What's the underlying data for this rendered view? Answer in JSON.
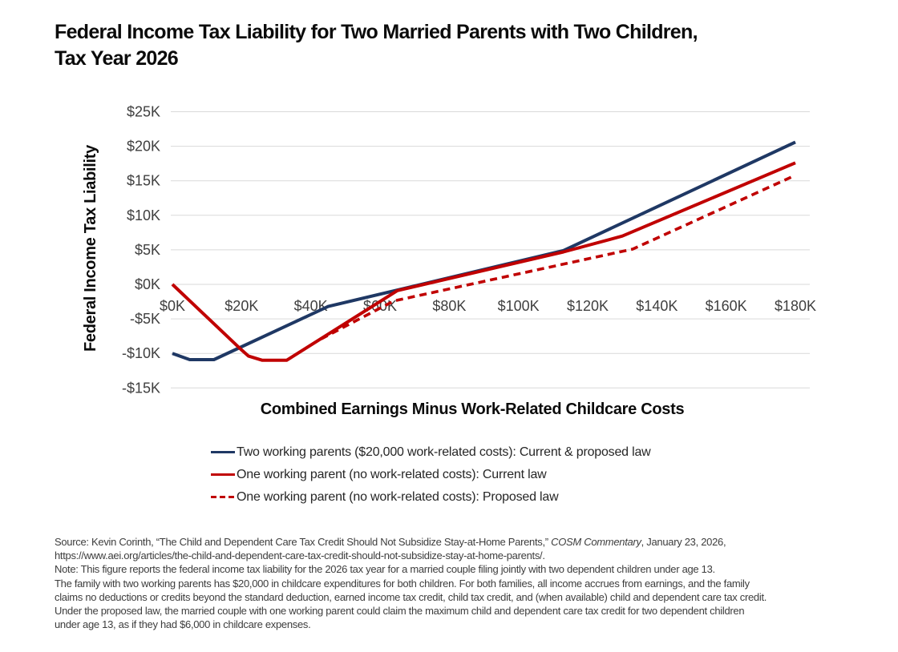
{
  "page": {
    "title_line1": "Federal Income Tax Liability for Two Married Parents with Two Children,",
    "title_line2": "Tax Year 2026"
  },
  "chart_data": {
    "type": "line",
    "title": "Federal Income Tax Liability for Two Married Parents with Two Children, Tax Year 2026",
    "xlabel": "Combined Earnings Minus Work-Related Childcare Costs",
    "ylabel": "Federal Income Tax Liability",
    "x_units": "thousands of dollars",
    "y_units": "thousands of dollars",
    "xlim": [
      0,
      180
    ],
    "ylim": [
      -15,
      25
    ],
    "grid": "horizontal",
    "gridline_color": "#d9d9d9",
    "tick_label_color": "#3f3f3f",
    "x_ticks": [
      0,
      20,
      40,
      60,
      80,
      100,
      120,
      140,
      160,
      180
    ],
    "x_tick_labels": [
      "$0K",
      "$20K",
      "$40K",
      "$60K",
      "$80K",
      "$100K",
      "$120K",
      "$140K",
      "$160K",
      "$180K"
    ],
    "y_ticks": [
      25,
      20,
      15,
      10,
      5,
      0,
      -5,
      -10,
      -15
    ],
    "y_tick_labels": [
      "$25K",
      "$20K",
      "$15K",
      "$10K",
      "$5K",
      "$0K",
      "-$5K",
      "-$10K",
      "-$15K"
    ],
    "legend_position": "below",
    "series": [
      {
        "name": "Two working parents ($20,000 work-related costs): Current & proposed law",
        "color": "#1f3864",
        "style": "solid",
        "points": [
          [
            0,
            -10.0
          ],
          [
            5,
            -10.9
          ],
          [
            12,
            -10.9
          ],
          [
            45,
            -3.2
          ],
          [
            113,
            4.9
          ],
          [
            180,
            20.6
          ]
        ]
      },
      {
        "name": "One working parent (no work-related costs): Current law",
        "color": "#c00000",
        "style": "solid",
        "points": [
          [
            0,
            0
          ],
          [
            20,
            -9.5
          ],
          [
            22,
            -10.4
          ],
          [
            26,
            -11.0
          ],
          [
            33,
            -11.0
          ],
          [
            65,
            -0.9
          ],
          [
            113,
            4.7
          ],
          [
            130,
            7.0
          ],
          [
            180,
            17.6
          ]
        ]
      },
      {
        "name": "One working parent (no work-related costs): Proposed law",
        "color": "#c00000",
        "style": "dashed",
        "points": [
          [
            43,
            -7.9
          ],
          [
            64,
            -2.4
          ],
          [
            133,
            5.1
          ],
          [
            180,
            15.8
          ]
        ]
      }
    ]
  },
  "footer": {
    "source_prefix": "Source: Kevin Corinth, “The Child and Dependent Care Tax Credit Should Not Subsidize Stay-at-Home Parents,” ",
    "source_italic": "COSM Commentary",
    "source_suffix": ", January 23, 2026,",
    "source_line2": "https://www.aei.org/articles/the-child-and-dependent-care-tax-credit-should-not-subsidize-stay-at-home-parents/.",
    "note_lines": [
      "Note: This figure reports the federal income tax liability for the 2026 tax year for a married couple filing jointly with two dependent children under age 13.",
      "The family with two working parents has $20,000 in childcare expenditures for both children. For both families, all income accrues from earnings, and the family",
      "claims no deductions or credits beyond the standard deduction, earned income tax credit, child tax credit, and (when available) child and dependent care tax credit.",
      "Under the proposed law, the married couple with one working parent could claim the maximum child and dependent care tax credit for two dependent children",
      "under age 13, as if they had $6,000 in childcare expenses."
    ]
  }
}
